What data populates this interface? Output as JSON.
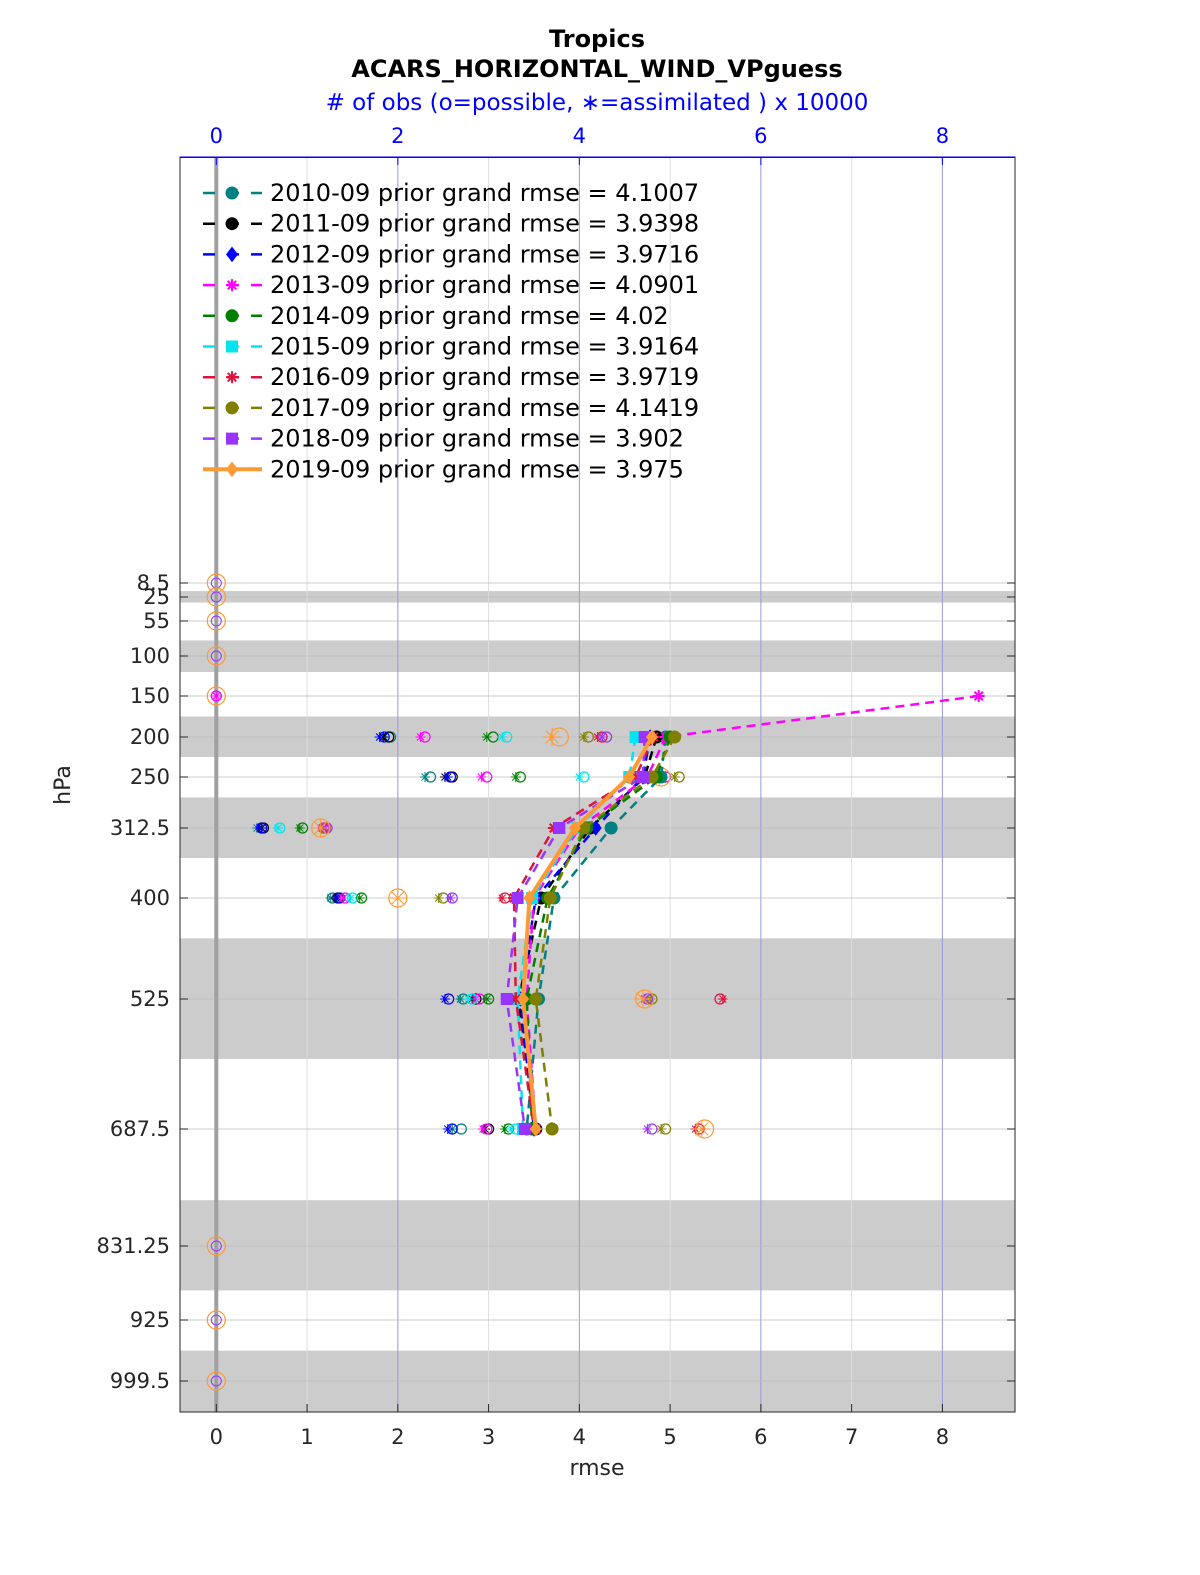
{
  "chart_data": {
    "type": "line",
    "title": "Tropics",
    "subtitle": "ACARS_HORIZONTAL_WIND_VPguess",
    "top_axis_label": "# of obs (o=possible, ∗=assimilated ) x 10000",
    "xlabel": "rmse",
    "ylabel": "hPa",
    "xlim": [
      -0.4,
      8.8
    ],
    "x_ticks": [
      "0",
      "1",
      "2",
      "3",
      "4",
      "5",
      "6",
      "7",
      "8"
    ],
    "top_xlim": [
      -0.4,
      8.8
    ],
    "top_ticks": [
      "0",
      "2",
      "4",
      "6",
      "8"
    ],
    "y_levels": [
      8.5,
      25,
      55,
      100,
      150,
      200,
      250,
      312.5,
      400,
      525,
      687.5,
      831.25,
      925,
      999.5
    ],
    "y_tick_labels": [
      "8.5",
      "25",
      "55",
      "100",
      "150",
      "200",
      "250",
      "312.5",
      "400",
      "525",
      "687.5",
      "831.25",
      "925",
      "999.5"
    ],
    "y_direction": "reversed (pressure increases downward)",
    "shaded_layers": [
      [
        18,
        32
      ],
      [
        80,
        120
      ],
      [
        175,
        225
      ],
      [
        275,
        350
      ],
      [
        450,
        600
      ],
      [
        775,
        887.5
      ],
      [
        962.5,
        1037
      ]
    ],
    "legend_position": "top-left",
    "grid": true,
    "series": [
      {
        "name": "2010-09 prior grand rmse = 4.1007",
        "color": "#008080",
        "marker": "circle",
        "style": "dashed",
        "levels": [
          200,
          250,
          312.5,
          400,
          525,
          687.5
        ],
        "rmse": [
          4.95,
          4.9,
          4.35,
          3.72,
          3.55,
          3.42
        ],
        "obs_possible": [
          1.92,
          2.36,
          0.5,
          1.28,
          2.72,
          2.7
        ],
        "obs_assimilated": [
          1.8,
          2.3,
          0.45,
          1.26,
          2.69,
          2.6
        ]
      },
      {
        "name": "2011-09 prior grand rmse = 3.9398",
        "color": "#000000",
        "marker": "circle",
        "style": "dashed",
        "levels": [
          200,
          250,
          312.5,
          400,
          525,
          687.5
        ],
        "rmse": [
          4.85,
          4.72,
          4.12,
          3.58,
          3.33,
          3.52
        ],
        "obs_possible": [
          1.9,
          2.6,
          0.52,
          1.34,
          2.86,
          3.0
        ],
        "obs_assimilated": [
          1.84,
          2.52,
          0.5,
          1.32,
          2.82,
          2.96
        ]
      },
      {
        "name": "2012-09 prior grand rmse = 3.9716",
        "color": "#0000ff",
        "marker": "diamond",
        "style": "dashed",
        "levels": [
          200,
          250,
          312.5,
          400,
          525,
          687.5
        ],
        "rmse": [
          4.78,
          4.7,
          4.18,
          3.52,
          3.35,
          3.5
        ],
        "obs_possible": [
          1.85,
          2.58,
          0.5,
          1.36,
          2.56,
          2.6
        ],
        "obs_assimilated": [
          1.8,
          2.55,
          0.48,
          1.34,
          2.52,
          2.55
        ]
      },
      {
        "name": "2013-09 prior grand rmse = 4.0901",
        "color": "#ff00ff",
        "marker": "star",
        "style": "dashed",
        "levels": [
          150,
          200,
          250,
          312.5,
          400,
          525,
          687.5
        ],
        "rmse": [
          8.4,
          4.95,
          4.75,
          4.0,
          3.5,
          3.42,
          3.52
        ],
        "obs_possible": [
          0.0,
          2.3,
          2.98,
          1.18,
          1.42,
          2.9,
          2.98
        ],
        "obs_assimilated": [
          0.0,
          2.25,
          2.92,
          1.15,
          1.4,
          2.86,
          2.94
        ]
      },
      {
        "name": "2014-09 prior grand rmse = 4.02",
        "color": "#008000",
        "marker": "circle",
        "style": "dashed",
        "levels": [
          200,
          250,
          312.5,
          400,
          525,
          687.5
        ],
        "rmse": [
          5.0,
          4.85,
          4.08,
          3.65,
          3.42,
          3.48
        ],
        "obs_possible": [
          3.05,
          3.35,
          0.95,
          1.6,
          3.0,
          3.22
        ],
        "obs_assimilated": [
          2.98,
          3.3,
          0.92,
          1.58,
          2.98,
          3.18
        ]
      },
      {
        "name": "2015-09 prior grand rmse = 3.9164",
        "color": "#00e5ee",
        "marker": "square",
        "style": "dashed",
        "levels": [
          200,
          250,
          312.5,
          400,
          525,
          687.5
        ],
        "rmse": [
          4.62,
          4.55,
          3.98,
          3.48,
          3.32,
          3.38
        ],
        "obs_possible": [
          3.2,
          4.05,
          0.7,
          1.5,
          2.82,
          3.3
        ],
        "obs_assimilated": [
          3.15,
          4.0,
          0.68,
          1.48,
          2.78,
          3.25
        ]
      },
      {
        "name": "2016-09 prior grand rmse = 3.9719",
        "color": "#dc143c",
        "marker": "star",
        "style": "dashed",
        "levels": [
          200,
          250,
          312.5,
          400,
          525,
          687.5
        ],
        "rmse": [
          4.82,
          4.62,
          3.72,
          3.28,
          3.3,
          3.5
        ],
        "obs_possible": [
          4.25,
          4.95,
          1.2,
          3.18,
          5.55,
          5.32
        ],
        "obs_assimilated": [
          4.2,
          4.88,
          1.18,
          3.15,
          5.58,
          5.28
        ]
      },
      {
        "name": "2017-09 prior grand rmse = 4.1419",
        "color": "#808000",
        "marker": "circle",
        "style": "dashed",
        "levels": [
          200,
          250,
          312.5,
          400,
          525,
          687.5
        ],
        "rmse": [
          5.05,
          4.8,
          4.05,
          3.68,
          3.52,
          3.7
        ],
        "obs_possible": [
          4.1,
          5.1,
          1.2,
          2.5,
          4.8,
          4.95
        ],
        "obs_assimilated": [
          4.05,
          5.05,
          1.15,
          2.45,
          4.78,
          4.9
        ]
      },
      {
        "name": "2018-09 prior grand rmse = 3.902",
        "color": "#9933ff",
        "marker": "square",
        "style": "dashed",
        "levels": [
          200,
          250,
          312.5,
          400,
          525,
          687.5
        ],
        "rmse": [
          4.72,
          4.7,
          3.78,
          3.32,
          3.2,
          3.4
        ],
        "obs_possible": [
          4.3,
          4.95,
          1.22,
          2.6,
          4.75,
          4.8
        ],
        "obs_assimilated": [
          4.25,
          4.9,
          1.2,
          2.58,
          4.72,
          4.75
        ]
      },
      {
        "name": "2019-09 prior grand rmse = 3.975",
        "color": "#ff9933",
        "marker": "diamond",
        "style": "solid",
        "levels": [
          200,
          250,
          312.5,
          400,
          525,
          687.5
        ],
        "rmse": [
          4.8,
          4.55,
          3.95,
          3.45,
          3.38,
          3.52
        ],
        "obs_possible": [
          3.78,
          4.9,
          1.15,
          2.0,
          4.72,
          5.38
        ],
        "obs_assimilated": [
          3.7,
          4.88,
          1.15,
          2.0,
          4.7,
          5.35
        ]
      }
    ],
    "zero_obs_levels": [
      8.5,
      25,
      55,
      100,
      150,
      831.25,
      925,
      999.5
    ]
  }
}
